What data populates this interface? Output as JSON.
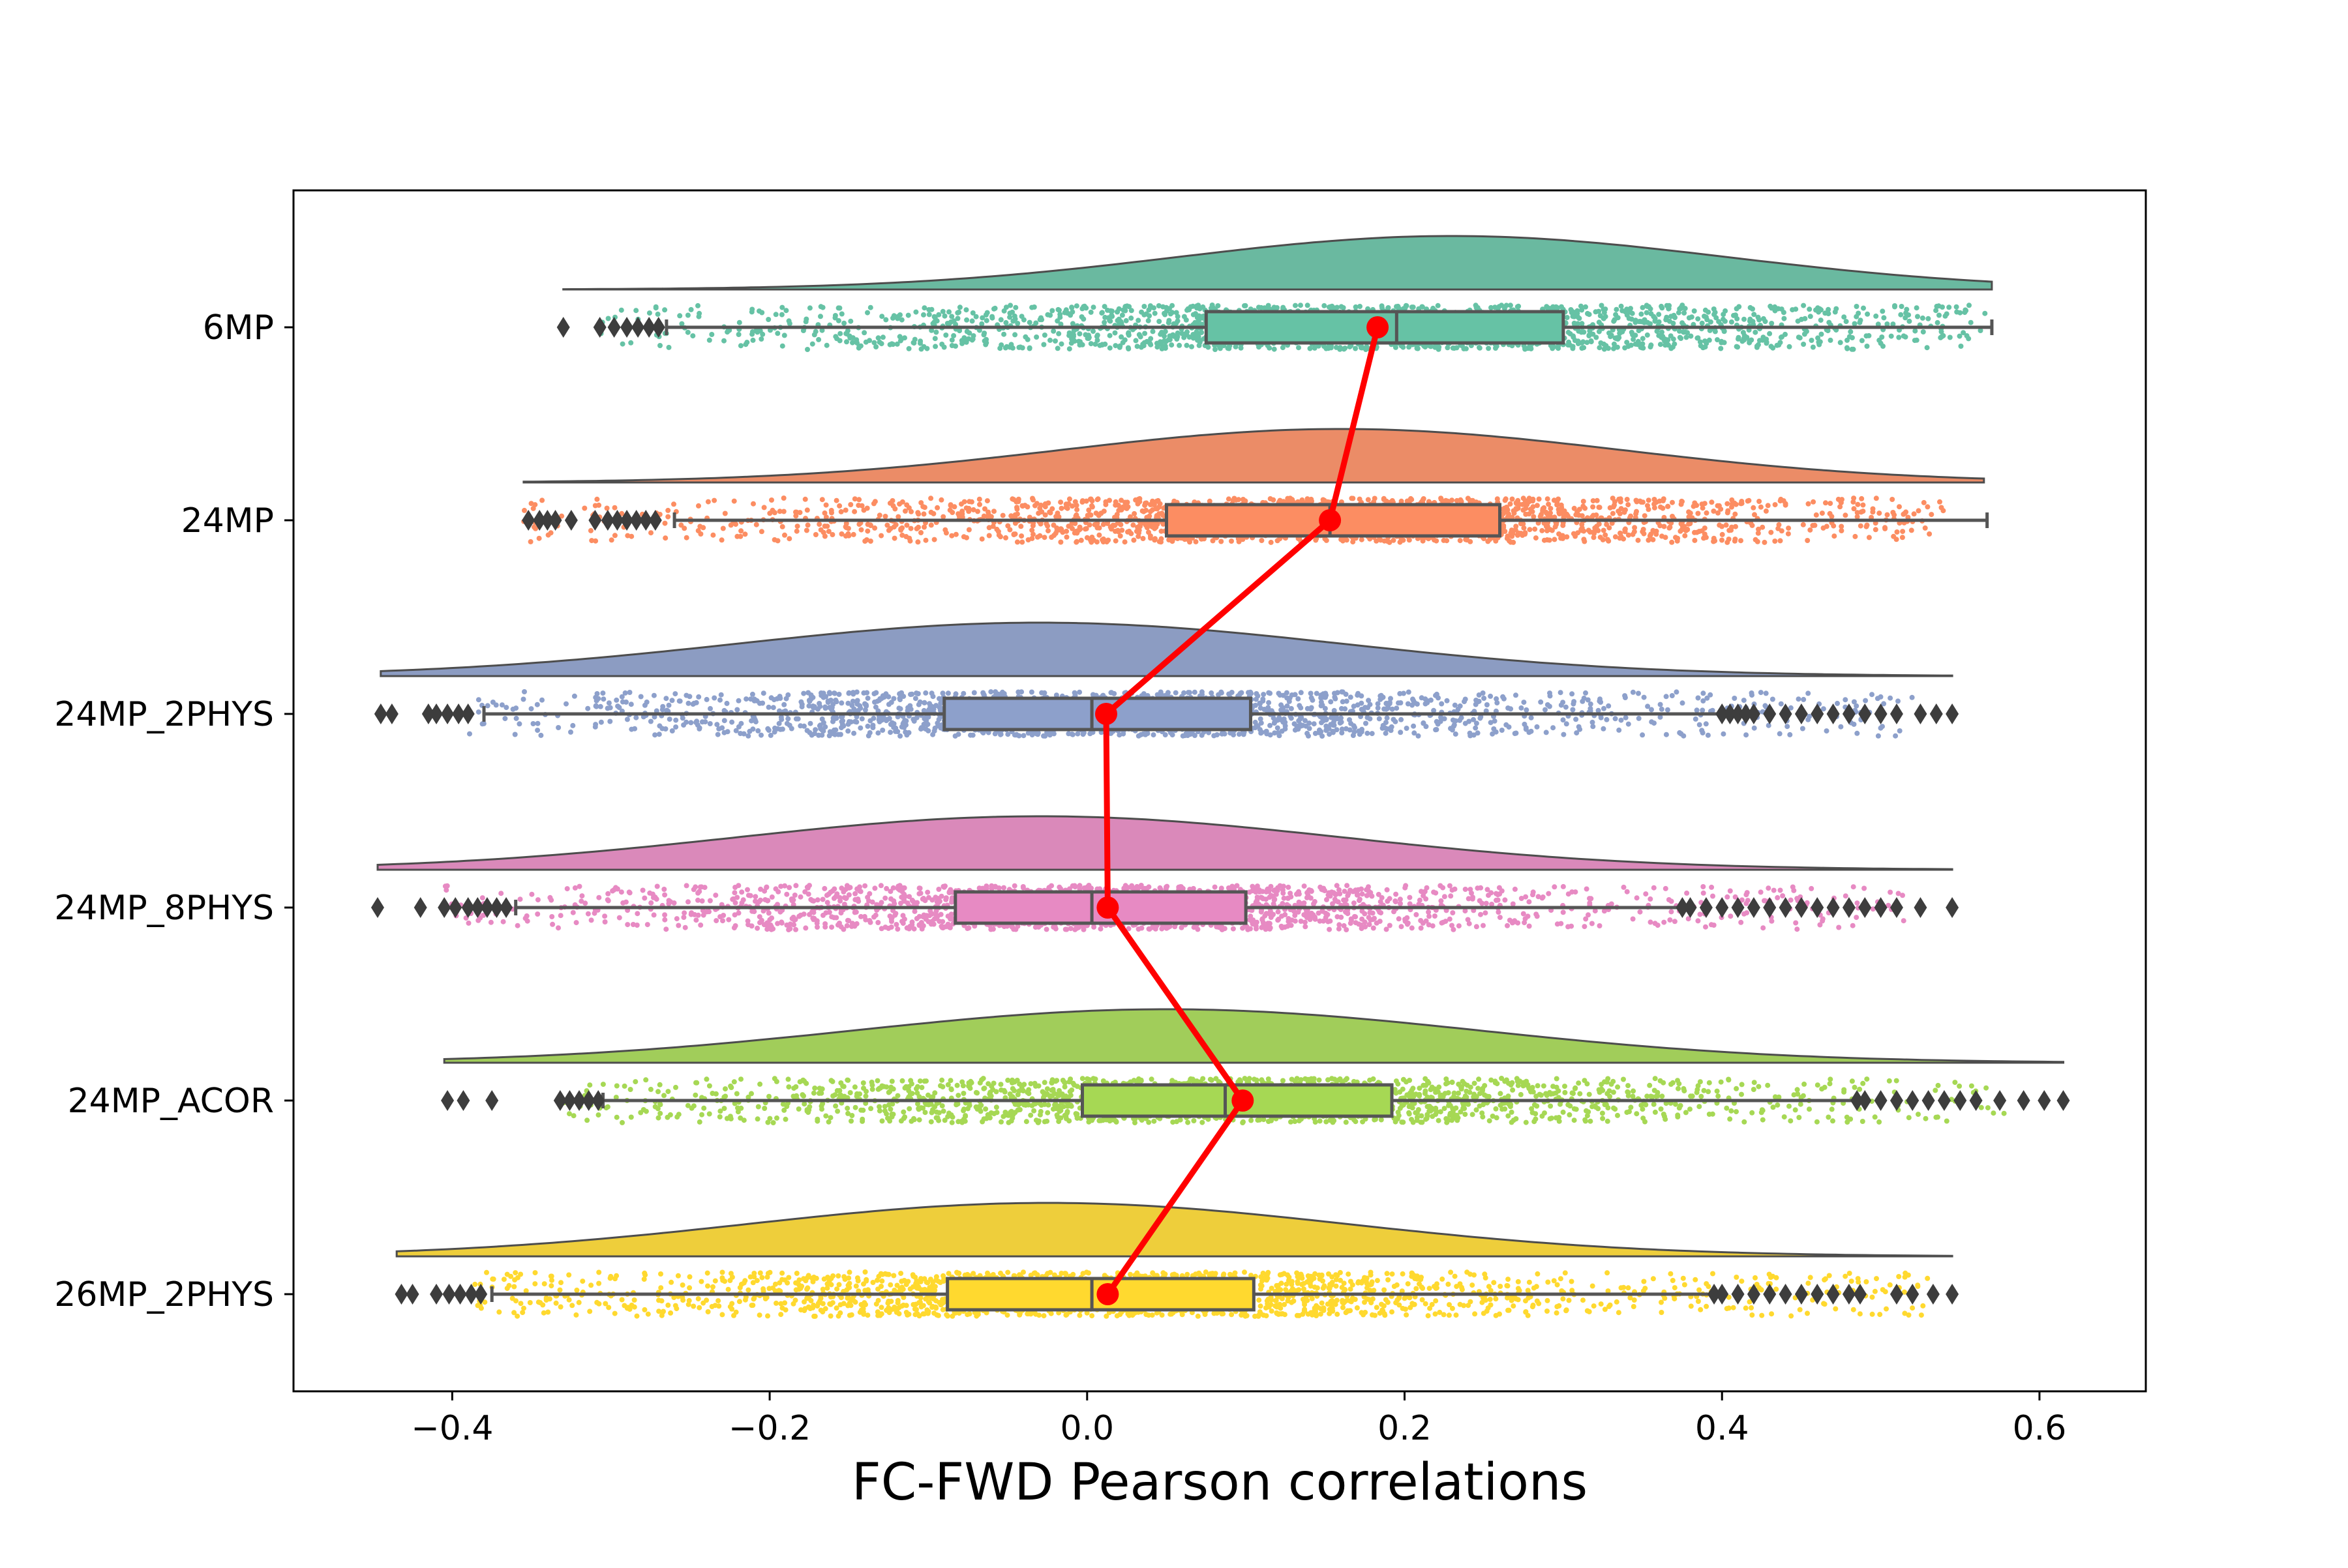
{
  "chart_data": {
    "type": "raincloud",
    "title": "",
    "xlabel": "FC-FWD Pearson correlations",
    "ylabel": "",
    "xlim": [
      -0.5,
      0.667
    ],
    "xticks": [
      -0.4,
      -0.2,
      0.0,
      0.2,
      0.4,
      0.6
    ],
    "xtick_labels": [
      "−0.4",
      "−0.2",
      "0.0",
      "0.2",
      "0.4",
      "0.6"
    ],
    "categories": [
      "6MP",
      "24MP",
      "24MP_2PHYS",
      "24MP_8PHYS",
      "24MP_ACOR",
      "26MP_2PHYS"
    ],
    "series": [
      {
        "name": "6MP",
        "color": "#66c2a5",
        "density_range": [
          -0.33,
          0.57
        ],
        "density_peak": 0.23,
        "box": {
          "whisker_low": -0.265,
          "q1": 0.075,
          "median": 0.195,
          "q3": 0.3,
          "whisker_high": 0.57
        },
        "outliers": [
          -0.33,
          -0.307,
          -0.298,
          -0.29,
          -0.283,
          -0.276,
          -0.27
        ],
        "scatter_range": [
          -0.31,
          0.57
        ],
        "mean": 0.183
      },
      {
        "name": "24MP",
        "color": "#fc8d62",
        "density_range": [
          -0.355,
          0.565
        ],
        "density_peak": 0.16,
        "box": {
          "whisker_low": -0.26,
          "q1": 0.05,
          "median": 0.153,
          "q3": 0.26,
          "whisker_high": 0.567
        },
        "outliers": [
          -0.352,
          -0.345,
          -0.34,
          -0.335,
          -0.325,
          -0.31,
          -0.302,
          -0.296,
          -0.29,
          -0.284,
          -0.278,
          -0.272
        ],
        "scatter_range": [
          -0.355,
          0.54
        ],
        "mean": 0.153
      },
      {
        "name": "24MP_2PHYS",
        "color": "#8da0cb",
        "density_range": [
          -0.445,
          0.545
        ],
        "density_peak": -0.03,
        "box": {
          "whisker_low": -0.38,
          "q1": -0.09,
          "median": 0.003,
          "q3": 0.103,
          "whisker_high": 0.4
        },
        "outliers": [
          -0.445,
          -0.438,
          -0.415,
          -0.41,
          -0.403,
          -0.396,
          -0.39,
          0.4,
          0.405,
          0.41,
          0.415,
          0.42,
          0.43,
          0.44,
          0.45,
          0.46,
          0.47,
          0.48,
          0.49,
          0.5,
          0.51,
          0.525,
          0.535,
          0.545
        ],
        "scatter_range": [
          -0.39,
          0.52
        ],
        "mean": 0.012
      },
      {
        "name": "24MP_8PHYS",
        "color": "#e78ac3",
        "density_range": [
          -0.447,
          0.545
        ],
        "density_peak": -0.03,
        "box": {
          "whisker_low": -0.36,
          "q1": -0.083,
          "median": 0.003,
          "q3": 0.1,
          "whisker_high": 0.375
        },
        "outliers": [
          -0.447,
          -0.42,
          -0.405,
          -0.398,
          -0.39,
          -0.384,
          -0.378,
          -0.372,
          -0.366,
          0.375,
          0.38,
          0.39,
          0.4,
          0.41,
          0.42,
          0.43,
          0.44,
          0.45,
          0.46,
          0.47,
          0.48,
          0.49,
          0.5,
          0.51,
          0.525,
          0.545
        ],
        "scatter_range": [
          -0.405,
          0.52
        ],
        "mean": 0.013
      },
      {
        "name": "24MP_ACOR",
        "color": "#a6d854",
        "density_range": [
          -0.405,
          0.615
        ],
        "density_peak": 0.05,
        "box": {
          "whisker_low": -0.305,
          "q1": -0.003,
          "median": 0.087,
          "q3": 0.192,
          "whisker_high": 0.485
        },
        "outliers": [
          -0.403,
          -0.393,
          -0.375,
          -0.332,
          -0.326,
          -0.32,
          -0.314,
          -0.308,
          0.485,
          0.49,
          0.5,
          0.51,
          0.52,
          0.53,
          0.54,
          0.55,
          0.56,
          0.575,
          0.59,
          0.603,
          0.615
        ],
        "scatter_range": [
          -0.33,
          0.58
        ],
        "mean": 0.098
      },
      {
        "name": "26MP_2PHYS",
        "color": "#ffd92f",
        "density_range": [
          -0.435,
          0.545
        ],
        "density_peak": -0.025,
        "box": {
          "whisker_low": -0.375,
          "q1": -0.088,
          "median": 0.003,
          "q3": 0.105,
          "whisker_high": 0.395
        },
        "outliers": [
          -0.432,
          -0.425,
          -0.41,
          -0.402,
          -0.395,
          -0.388,
          -0.382,
          0.395,
          0.4,
          0.41,
          0.42,
          0.43,
          0.44,
          0.45,
          0.46,
          0.47,
          0.48,
          0.487,
          0.51,
          0.52,
          0.533,
          0.545
        ],
        "scatter_range": [
          -0.39,
          0.53
        ],
        "mean": 0.013
      }
    ],
    "mean_line_color": "#ff0000",
    "grid": false,
    "legend": "none"
  }
}
